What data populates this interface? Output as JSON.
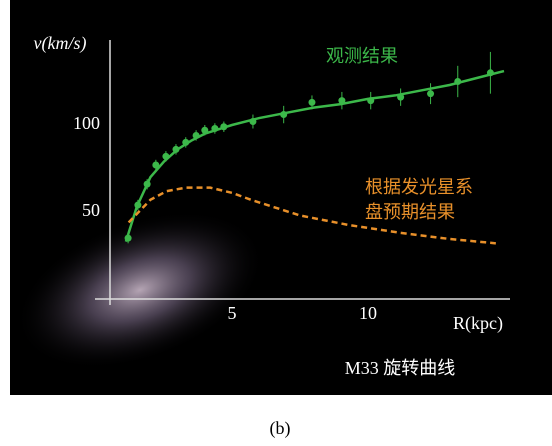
{
  "chart_data": {
    "type": "line",
    "title": "M33 旋转曲线",
    "xlabel": "R(kpc)",
    "ylabel": "v(km/s)",
    "caption": "(b)",
    "xlim": [
      0,
      15
    ],
    "ylim": [
      0,
      150
    ],
    "xticks": [
      5,
      10
    ],
    "yticks": [
      50,
      100
    ],
    "series": [
      {
        "name": "观测结果",
        "color": "#3cb84a",
        "kind": "points",
        "x": [
          1.18,
          1.54,
          1.88,
          2.2,
          2.57,
          2.94,
          3.3,
          3.68,
          4.0,
          4.37,
          4.7,
          5.77,
          6.9,
          7.94,
          9.04,
          10.1,
          11.2,
          12.3,
          13.3,
          14.5
        ],
        "values": [
          35,
          54,
          66,
          77,
          82,
          86,
          90,
          94,
          97,
          98,
          99,
          102,
          106,
          113,
          114,
          114,
          116,
          118,
          125,
          130
        ],
        "errors": [
          3,
          3,
          3,
          3,
          3,
          3,
          3,
          3,
          3,
          3,
          3,
          4,
          5,
          4,
          5,
          5,
          5,
          6,
          9,
          12
        ]
      },
      {
        "name": "观测结果",
        "color": "#3cb84a",
        "kind": "fit",
        "x": [
          1.1,
          1.5,
          2.0,
          2.5,
          3.0,
          3.5,
          4.0,
          5.0,
          6.0,
          7.0,
          8.0,
          9.0,
          10.0,
          11.0,
          12.0,
          13.0,
          14.0,
          15.0
        ],
        "values": [
          33,
          53,
          70,
          79,
          86,
          91,
          95,
          100,
          104,
          107,
          110,
          112,
          115,
          117,
          120,
          123,
          127,
          131
        ]
      },
      {
        "name": "根据发光星系盘预期结果",
        "color": "#e8902a",
        "kind": "dashed",
        "x": [
          1.2,
          2.0,
          2.6,
          3.3,
          4.2,
          5.0,
          5.7,
          7.5,
          9.3,
          11.2,
          13.0,
          14.7
        ],
        "values": [
          44,
          57,
          62,
          64,
          64,
          61,
          57,
          48,
          42.5,
          38,
          34.5,
          32
        ]
      }
    ]
  }
}
